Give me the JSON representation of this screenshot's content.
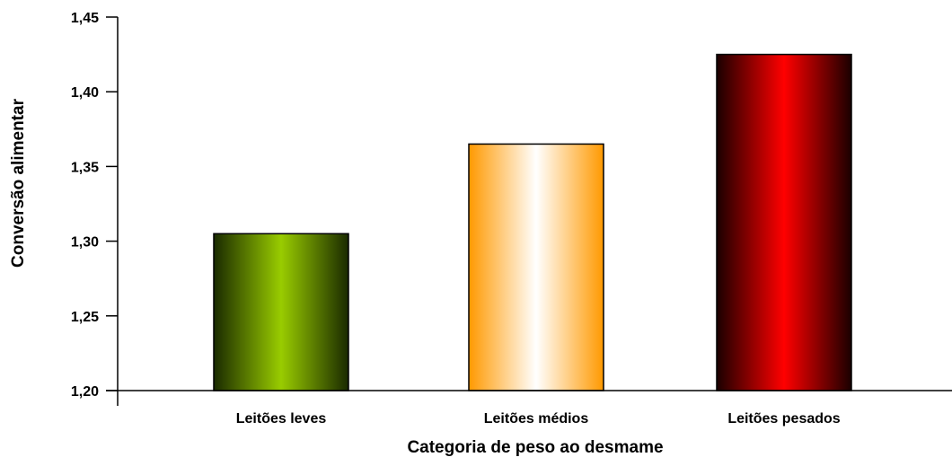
{
  "chart_data": {
    "type": "bar",
    "title": "",
    "xlabel": "Categoria de peso ao desmame",
    "ylabel": "Conversão alimentar",
    "categories": [
      "Leitões leves",
      "Leitões médios",
      "Leitões pesados"
    ],
    "values": [
      1.305,
      1.365,
      1.425
    ],
    "ylim": [
      1.2,
      1.45
    ],
    "yticks": [
      1.2,
      1.25,
      1.3,
      1.35,
      1.4,
      1.45
    ],
    "ytick_labels": [
      "1,20",
      "1,25",
      "1,30",
      "1,35",
      "1,40",
      "1,45"
    ],
    "grid": false,
    "legend": "none",
    "bar_colors": [
      {
        "edge": "#1a2a00",
        "center": "#99cc00"
      },
      {
        "edge": "#ff9900",
        "center": "#ffffff"
      },
      {
        "edge": "#1a0000",
        "center": "#ff0000"
      }
    ]
  }
}
